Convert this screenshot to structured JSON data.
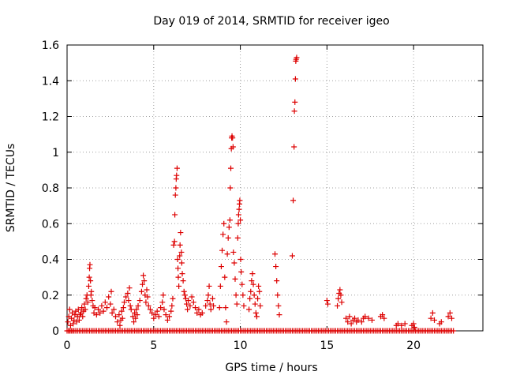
{
  "chart_data": {
    "type": "scatter",
    "title": "Day 019 of 2014, SRMTID for receiver igeo",
    "xlabel": "GPS time / hours",
    "ylabel": "SRMTID / TECUs",
    "xlim": [
      0,
      24
    ],
    "ylim": [
      0,
      1.6
    ],
    "xticks": [
      0,
      5,
      10,
      15,
      20
    ],
    "xtick_labels": [
      "0",
      "5",
      "10",
      "15",
      "20"
    ],
    "yticks": [
      0,
      0.2,
      0.4,
      0.6,
      0.8,
      1,
      1.2,
      1.4,
      1.6
    ],
    "ytick_labels": [
      "0",
      "0.2",
      "0.4",
      "0.6",
      "0.8",
      "1",
      "1.2",
      "1.4",
      "1.6"
    ],
    "grid": true,
    "marker": "+",
    "color": "#dd0000",
    "series": [
      {
        "name": "SRMTID",
        "points": [
          [
            0.05,
            0.05
          ],
          [
            0.1,
            0.08
          ],
          [
            0.15,
            0.12
          ],
          [
            0.2,
            0.03
          ],
          [
            0.25,
            0.07
          ],
          [
            0.3,
            0.1
          ],
          [
            0.35,
            0.04
          ],
          [
            0.4,
            0.06
          ],
          [
            0.45,
            0.09
          ],
          [
            0.5,
            0.11
          ],
          [
            0.55,
            0.05
          ],
          [
            0.6,
            0.08
          ],
          [
            0.65,
            0.12
          ],
          [
            0.7,
            0.06
          ],
          [
            0.75,
            0.09
          ],
          [
            0.8,
            0.1
          ],
          [
            0.85,
            0.13
          ],
          [
            0.9,
            0.08
          ],
          [
            0.95,
            0.11
          ],
          [
            1.0,
            0.15
          ],
          [
            1.05,
            0.12
          ],
          [
            1.1,
            0.18
          ],
          [
            1.15,
            0.2
          ],
          [
            1.2,
            0.16
          ],
          [
            1.25,
            0.25
          ],
          [
            1.28,
            0.3
          ],
          [
            1.3,
            0.35
          ],
          [
            1.32,
            0.37
          ],
          [
            1.35,
            0.28
          ],
          [
            1.38,
            0.2
          ],
          [
            1.4,
            0.22
          ],
          [
            1.45,
            0.17
          ],
          [
            1.5,
            0.14
          ],
          [
            1.55,
            0.1
          ],
          [
            1.6,
            0.13
          ],
          [
            1.7,
            0.09
          ],
          [
            1.8,
            0.12
          ],
          [
            1.9,
            0.1
          ],
          [
            2.0,
            0.14
          ],
          [
            2.1,
            0.11
          ],
          [
            2.2,
            0.16
          ],
          [
            2.3,
            0.13
          ],
          [
            2.4,
            0.19
          ],
          [
            2.5,
            0.15
          ],
          [
            2.55,
            0.22
          ],
          [
            2.6,
            0.1
          ],
          [
            2.7,
            0.12
          ],
          [
            2.8,
            0.08
          ],
          [
            2.9,
            0.05
          ],
          [
            3.0,
            0.09
          ],
          [
            3.05,
            0.03
          ],
          [
            3.1,
            0.06
          ],
          [
            3.15,
            0.11
          ],
          [
            3.2,
            0.07
          ],
          [
            3.25,
            0.13
          ],
          [
            3.3,
            0.16
          ],
          [
            3.4,
            0.19
          ],
          [
            3.5,
            0.21
          ],
          [
            3.55,
            0.17
          ],
          [
            3.6,
            0.24
          ],
          [
            3.65,
            0.14
          ],
          [
            3.7,
            0.12
          ],
          [
            3.8,
            0.08
          ],
          [
            3.85,
            0.05
          ],
          [
            3.9,
            0.1
          ],
          [
            3.95,
            0.07
          ],
          [
            4.0,
            0.12
          ],
          [
            4.05,
            0.09
          ],
          [
            4.1,
            0.14
          ],
          [
            4.2,
            0.17
          ],
          [
            4.3,
            0.22
          ],
          [
            4.35,
            0.26
          ],
          [
            4.4,
            0.31
          ],
          [
            4.45,
            0.28
          ],
          [
            4.5,
            0.2
          ],
          [
            4.55,
            0.16
          ],
          [
            4.6,
            0.23
          ],
          [
            4.65,
            0.19
          ],
          [
            4.7,
            0.14
          ],
          [
            4.8,
            0.12
          ],
          [
            4.9,
            0.1
          ],
          [
            5.0,
            0.07
          ],
          [
            5.1,
            0.09
          ],
          [
            5.2,
            0.11
          ],
          [
            5.3,
            0.08
          ],
          [
            5.4,
            0.13
          ],
          [
            5.5,
            0.16
          ],
          [
            5.55,
            0.2
          ],
          [
            5.6,
            0.12
          ],
          [
            5.7,
            0.09
          ],
          [
            5.8,
            0.06
          ],
          [
            5.9,
            0.08
          ],
          [
            6.0,
            0.11
          ],
          [
            6.05,
            0.14
          ],
          [
            6.1,
            0.18
          ],
          [
            6.15,
            0.48
          ],
          [
            6.2,
            0.5
          ],
          [
            6.22,
            0.65
          ],
          [
            6.25,
            0.76
          ],
          [
            6.28,
            0.8
          ],
          [
            6.3,
            0.85
          ],
          [
            6.32,
            0.87
          ],
          [
            6.35,
            0.91
          ],
          [
            6.38,
            0.4
          ],
          [
            6.4,
            0.35
          ],
          [
            6.42,
            0.3
          ],
          [
            6.45,
            0.25
          ],
          [
            6.5,
            0.42
          ],
          [
            6.52,
            0.48
          ],
          [
            6.55,
            0.55
          ],
          [
            6.6,
            0.44
          ],
          [
            6.62,
            0.38
          ],
          [
            6.65,
            0.32
          ],
          [
            6.7,
            0.28
          ],
          [
            6.75,
            0.22
          ],
          [
            6.8,
            0.2
          ],
          [
            6.85,
            0.18
          ],
          [
            6.9,
            0.15
          ],
          [
            6.95,
            0.12
          ],
          [
            7.0,
            0.17
          ],
          [
            7.1,
            0.14
          ],
          [
            7.2,
            0.19
          ],
          [
            7.3,
            0.16
          ],
          [
            7.4,
            0.13
          ],
          [
            7.5,
            0.1
          ],
          [
            7.6,
            0.12
          ],
          [
            7.7,
            0.09
          ],
          [
            7.8,
            0.1
          ],
          [
            8.0,
            0.14
          ],
          [
            8.1,
            0.17
          ],
          [
            8.15,
            0.2
          ],
          [
            8.2,
            0.25
          ],
          [
            8.25,
            0.15
          ],
          [
            8.3,
            0.12
          ],
          [
            8.4,
            0.18
          ],
          [
            8.45,
            0.14
          ],
          [
            8.8,
            0.13
          ],
          [
            8.85,
            0.25
          ],
          [
            8.9,
            0.36
          ],
          [
            8.95,
            0.45
          ],
          [
            9.0,
            0.54
          ],
          [
            9.05,
            0.6
          ],
          [
            9.1,
            0.3
          ],
          [
            9.15,
            0.13
          ],
          [
            9.2,
            0.05
          ],
          [
            9.25,
            0.43
          ],
          [
            9.3,
            0.52
          ],
          [
            9.35,
            0.58
          ],
          [
            9.4,
            0.62
          ],
          [
            9.42,
            0.8
          ],
          [
            9.45,
            0.91
          ],
          [
            9.48,
            1.02
          ],
          [
            9.5,
            1.08
          ],
          [
            9.52,
            1.09
          ],
          [
            9.55,
            1.08
          ],
          [
            9.58,
            1.03
          ],
          [
            9.6,
            0.44
          ],
          [
            9.65,
            0.38
          ],
          [
            9.7,
            0.29
          ],
          [
            9.75,
            0.2
          ],
          [
            9.8,
            0.15
          ],
          [
            9.85,
            0.52
          ],
          [
            9.88,
            0.6
          ],
          [
            9.9,
            0.65
          ],
          [
            9.93,
            0.68
          ],
          [
            9.95,
            0.71
          ],
          [
            9.97,
            0.73
          ],
          [
            10.0,
            0.62
          ],
          [
            10.02,
            0.4
          ],
          [
            10.05,
            0.33
          ],
          [
            10.1,
            0.26
          ],
          [
            10.15,
            0.2
          ],
          [
            10.2,
            0.14
          ],
          [
            10.5,
            0.12
          ],
          [
            10.55,
            0.18
          ],
          [
            10.6,
            0.22
          ],
          [
            10.65,
            0.28
          ],
          [
            10.7,
            0.32
          ],
          [
            10.75,
            0.26
          ],
          [
            10.8,
            0.2
          ],
          [
            10.85,
            0.15
          ],
          [
            10.9,
            0.1
          ],
          [
            10.95,
            0.08
          ],
          [
            11.0,
            0.18
          ],
          [
            11.05,
            0.25
          ],
          [
            11.1,
            0.22
          ],
          [
            11.15,
            0.14
          ],
          [
            12.0,
            0.43
          ],
          [
            12.05,
            0.36
          ],
          [
            12.1,
            0.28
          ],
          [
            12.15,
            0.2
          ],
          [
            12.2,
            0.14
          ],
          [
            12.25,
            0.09
          ],
          [
            13.0,
            0.42
          ],
          [
            13.05,
            0.73
          ],
          [
            13.1,
            1.03
          ],
          [
            13.12,
            1.23
          ],
          [
            13.15,
            1.28
          ],
          [
            13.18,
            1.41
          ],
          [
            13.2,
            1.51
          ],
          [
            13.22,
            1.52
          ],
          [
            13.25,
            1.53
          ],
          [
            15.0,
            0.17
          ],
          [
            15.05,
            0.15
          ],
          [
            15.6,
            0.14
          ],
          [
            15.65,
            0.18
          ],
          [
            15.7,
            0.21
          ],
          [
            15.75,
            0.23
          ],
          [
            15.8,
            0.2
          ],
          [
            15.85,
            0.16
          ],
          [
            16.1,
            0.07
          ],
          [
            16.2,
            0.05
          ],
          [
            16.3,
            0.08
          ],
          [
            16.4,
            0.04
          ],
          [
            16.5,
            0.06
          ],
          [
            16.6,
            0.07
          ],
          [
            16.7,
            0.05
          ],
          [
            16.8,
            0.06
          ],
          [
            17.0,
            0.05
          ],
          [
            17.1,
            0.07
          ],
          [
            17.2,
            0.08
          ],
          [
            17.4,
            0.07
          ],
          [
            17.6,
            0.06
          ],
          [
            18.1,
            0.08
          ],
          [
            18.2,
            0.09
          ],
          [
            18.3,
            0.07
          ],
          [
            19.0,
            0.03
          ],
          [
            19.1,
            0.04
          ],
          [
            19.3,
            0.03
          ],
          [
            19.5,
            0.04
          ],
          [
            19.9,
            0.03
          ],
          [
            20.0,
            0.04
          ],
          [
            20.05,
            0.02
          ],
          [
            21.0,
            0.07
          ],
          [
            21.1,
            0.1
          ],
          [
            21.2,
            0.06
          ],
          [
            21.5,
            0.04
          ],
          [
            21.6,
            0.05
          ],
          [
            22.0,
            0.08
          ],
          [
            22.1,
            0.1
          ],
          [
            22.2,
            0.07
          ]
        ],
        "zero_markers_x": [
          0.0,
          0.4,
          0.9,
          1.4,
          1.9,
          2.4,
          2.9,
          3.4,
          3.9,
          4.4,
          4.9,
          5.4,
          5.9,
          6.4,
          6.9,
          7.4,
          7.9,
          8.4,
          8.9,
          9.4,
          9.9,
          10.4,
          10.9,
          11.4,
          11.9,
          12.4,
          12.9,
          13.4,
          13.9,
          14.4,
          14.9,
          15.4,
          15.9,
          16.4,
          16.9,
          17.4,
          17.9,
          18.4,
          18.9,
          19.4,
          19.9,
          20.4,
          20.9,
          21.4,
          21.9,
          22.4
        ]
      }
    ]
  }
}
